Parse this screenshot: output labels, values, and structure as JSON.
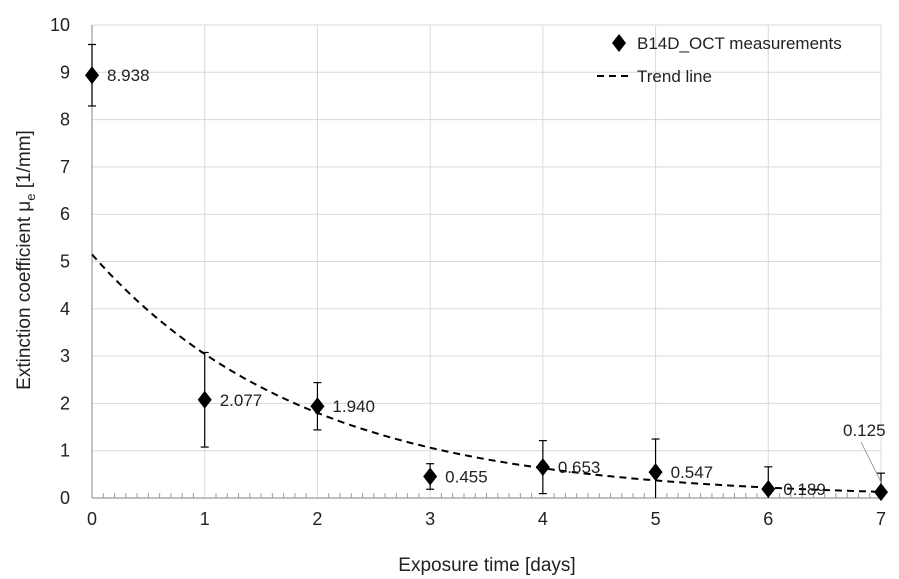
{
  "chart_data": {
    "type": "scatter",
    "xlabel": "Exposure time [days]",
    "ylabel": {
      "prefix": "Extinction coefficient μ",
      "subscript": "e",
      "suffix": " [1/mm]"
    },
    "xlim": [
      0,
      7
    ],
    "ylim": [
      0,
      10
    ],
    "x_ticks": [
      0,
      1,
      2,
      3,
      4,
      5,
      6,
      7
    ],
    "y_ticks": [
      0,
      1,
      2,
      3,
      4,
      5,
      6,
      7,
      8,
      9,
      10
    ],
    "grid": true,
    "legend_position": "top-right",
    "series": [
      {
        "name": "B14D_OCT measurements",
        "marker": "diamond",
        "color": "#000000",
        "points": [
          {
            "x": 0,
            "y": 8.938,
            "err_low": 0.65,
            "err_high": 0.65,
            "label": "8.938"
          },
          {
            "x": 1,
            "y": 2.077,
            "err_low": 1.0,
            "err_high": 1.0,
            "label": "2.077"
          },
          {
            "x": 2,
            "y": 1.94,
            "err_low": 0.5,
            "err_high": 0.5,
            "label": "1.940"
          },
          {
            "x": 3,
            "y": 0.455,
            "err_low": 0.27,
            "err_high": 0.27,
            "label": "0.455"
          },
          {
            "x": 4,
            "y": 0.653,
            "err_low": 0.56,
            "err_high": 0.56,
            "label": "0.653"
          },
          {
            "x": 5,
            "y": 0.547,
            "err_low": 0.7,
            "err_high": 0.7,
            "label": "0.547"
          },
          {
            "x": 6,
            "y": 0.189,
            "err_low": 0.47,
            "err_high": 0.47,
            "label": "0.189"
          },
          {
            "x": 7,
            "y": 0.125,
            "err_low": 0.4,
            "err_high": 0.4,
            "label": "0.125"
          }
        ]
      },
      {
        "name": "Trend line",
        "line_style": "dashed",
        "color": "#000000",
        "x": [
          0,
          1,
          2,
          3,
          4,
          5,
          6,
          7
        ],
        "y": [
          5.15,
          3.04,
          1.8,
          1.06,
          0.63,
          0.37,
          0.22,
          0.13
        ]
      }
    ]
  }
}
